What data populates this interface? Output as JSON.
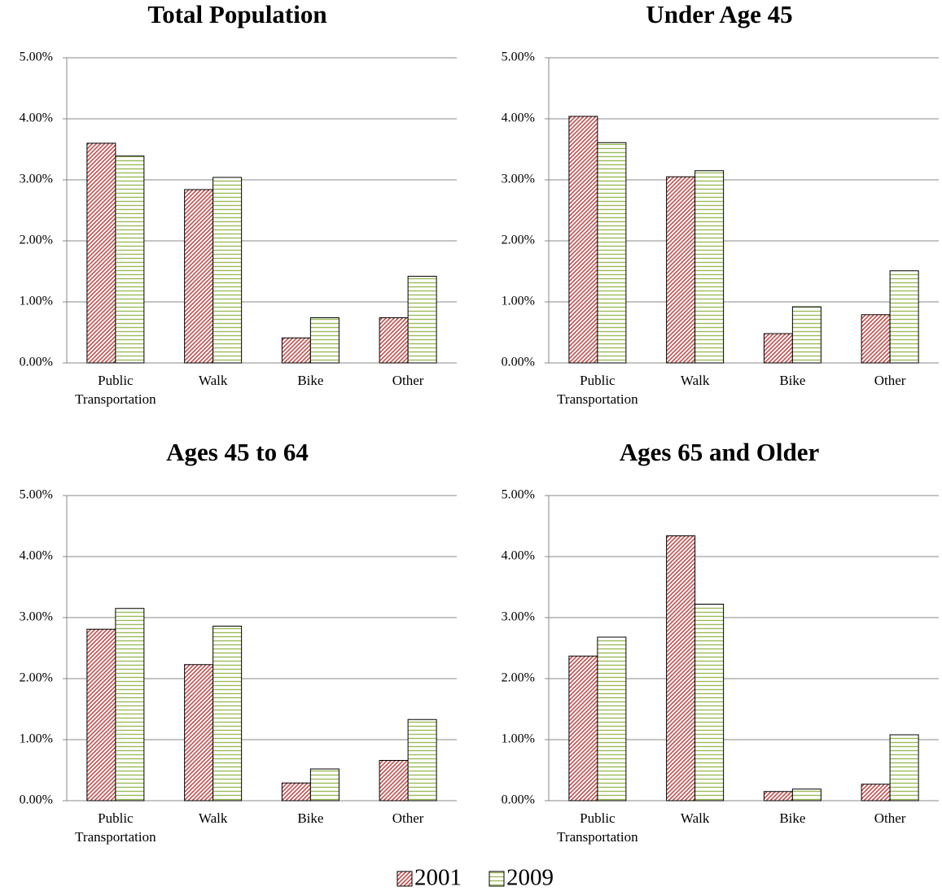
{
  "chart_data": [
    {
      "type": "bar",
      "title": "Total Population",
      "categories": [
        "Public Transportation",
        "Walk",
        "Bike",
        "Other"
      ],
      "series": [
        {
          "name": "2001",
          "color": "#c0504d",
          "values": [
            3.6,
            2.84,
            0.41,
            0.74
          ]
        },
        {
          "name": "2009",
          "color": "#9bbb59",
          "values": [
            3.39,
            3.04,
            0.74,
            1.42
          ]
        }
      ],
      "ylim": [
        0,
        5
      ],
      "yticks": [
        {
          "value": 0,
          "label": "0.00%"
        },
        {
          "value": 1,
          "label": "1.00%"
        },
        {
          "value": 2,
          "label": "2.00%"
        },
        {
          "value": 3,
          "label": "3.00%"
        },
        {
          "value": 4,
          "label": "4.00%"
        },
        {
          "value": 5,
          "label": "5.00%"
        }
      ],
      "grid": true
    },
    {
      "type": "bar",
      "title": "Under Age 45",
      "categories": [
        "Public Transportation",
        "Walk",
        "Bike",
        "Other"
      ],
      "series": [
        {
          "color": "#c0504d",
          "values": [
            4.04,
            3.05,
            0.48,
            0.79
          ]
        },
        {
          "color": "#9bbb59",
          "values": [
            3.61,
            3.15,
            0.92,
            1.51
          ]
        }
      ],
      "ylim": [
        0,
        5
      ],
      "yticks": [
        {
          "value": 0,
          "label": "0.00%"
        },
        {
          "value": 1,
          "label": "1.00%"
        },
        {
          "value": 2,
          "label": "2.00%"
        },
        {
          "value": 3,
          "label": "3.00%"
        },
        {
          "value": 4,
          "label": "4.00%"
        },
        {
          "value": 5,
          "label": "5.00%"
        }
      ],
      "grid": true
    },
    {
      "type": "bar",
      "title": "Ages 45 to 64",
      "categories": [
        "Public Transportation",
        "Walk",
        "Bike",
        "Other"
      ],
      "series": [
        {
          "color": "#c0504d",
          "values": [
            2.81,
            2.23,
            0.29,
            0.66
          ]
        },
        {
          "color": "#9bbb59",
          "values": [
            3.15,
            2.86,
            0.52,
            1.33
          ]
        }
      ],
      "ylim": [
        0,
        5
      ],
      "yticks": [
        {
          "value": 0,
          "label": "0.00%"
        },
        {
          "value": 1,
          "label": "1.00%"
        },
        {
          "value": 2,
          "label": "2.00%"
        },
        {
          "value": 3,
          "label": "3.00%"
        },
        {
          "value": 4,
          "label": "4.00%"
        },
        {
          "value": 5,
          "label": "5.00%"
        }
      ],
      "grid": true
    },
    {
      "type": "bar",
      "title": "Ages 65 and Older",
      "categories": [
        "Public Transportation",
        "Walk",
        "Bike",
        "Other"
      ],
      "series": [
        {
          "color": "#c0504d",
          "values": [
            2.37,
            4.34,
            0.15,
            0.27
          ]
        },
        {
          "color": "#9bbb59",
          "values": [
            2.68,
            3.22,
            0.19,
            1.08
          ]
        }
      ],
      "ylim": [
        0,
        5
      ],
      "yticks": [
        {
          "value": 0,
          "label": "0.00%"
        },
        {
          "value": 1,
          "label": "1.00%"
        },
        {
          "value": 2,
          "label": "2.00%"
        },
        {
          "value": 3,
          "label": "3.00%"
        },
        {
          "value": 4,
          "label": "4.00%"
        },
        {
          "value": 5,
          "label": "5.00%"
        }
      ],
      "grid": true
    }
  ]
}
